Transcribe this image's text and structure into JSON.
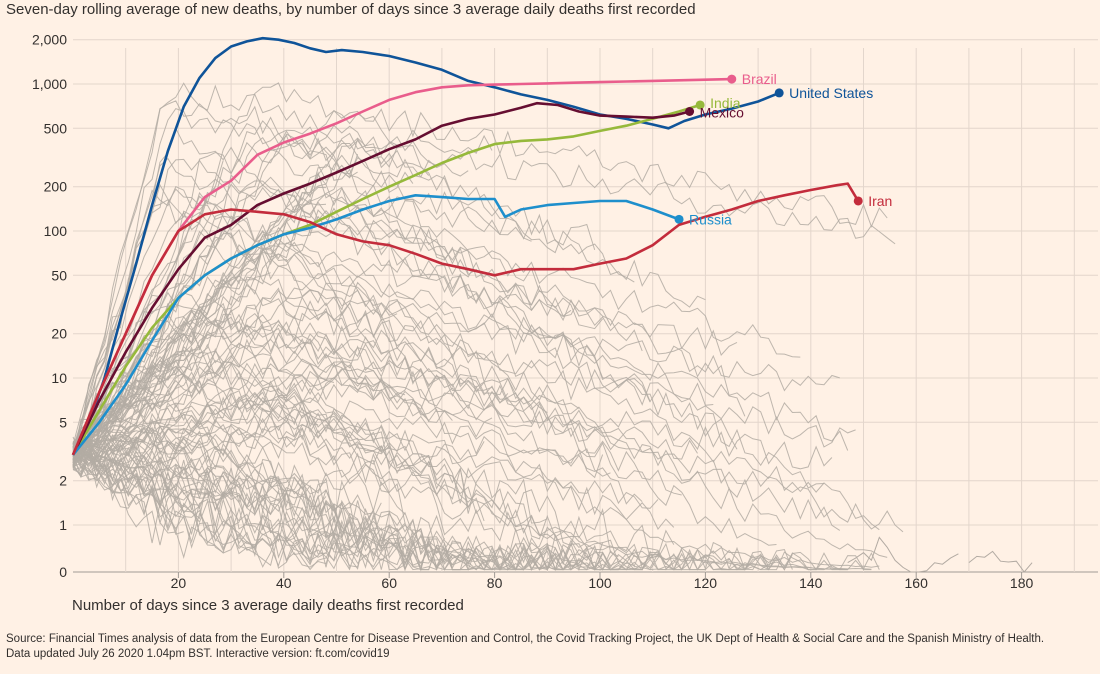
{
  "title": "Seven-day rolling average of new deaths, by number of days since 3 average daily deaths first recorded",
  "source": {
    "line1": "Source: Financial Times analysis of data from the European Centre for Disease Prevention and Control, the Covid Tracking Project, the UK Dept of Health & Social Care and the Spanish Ministry of Health.",
    "line2": "Data updated July 26 2020 1.04pm BST. Interactive version: ft.com/covid19"
  },
  "chart_data": {
    "type": "line",
    "title": "Seven-day rolling average of new deaths, by number of days since 3 average daily deaths first recorded",
    "xlabel": "Number of days since 3 average daily deaths first recorded",
    "ylabel": "",
    "y_scale": "log",
    "xlim": [
      0,
      190
    ],
    "ylim": [
      0,
      2500
    ],
    "x_ticks": [
      20,
      40,
      60,
      80,
      100,
      120,
      140,
      160,
      180
    ],
    "y_ticks": [
      {
        "value": 0,
        "label": "0"
      },
      {
        "value": 1,
        "label": "1"
      },
      {
        "value": 2,
        "label": "2"
      },
      {
        "value": 5,
        "label": "5"
      },
      {
        "value": 10,
        "label": "10"
      },
      {
        "value": 20,
        "label": "20"
      },
      {
        "value": 50,
        "label": "50"
      },
      {
        "value": 100,
        "label": "100"
      },
      {
        "value": 200,
        "label": "200"
      },
      {
        "value": 500,
        "label": "500"
      },
      {
        "value": 1000,
        "label": "1,000"
      },
      {
        "value": 2000,
        "label": "2,000"
      }
    ],
    "grid": true,
    "highlighted_series": [
      {
        "name": "United States",
        "color": "#0f5499",
        "x": [
          0,
          3,
          6,
          9,
          12,
          15,
          18,
          21,
          24,
          27,
          30,
          33,
          36,
          39,
          42,
          45,
          48,
          51,
          55,
          60,
          65,
          70,
          75,
          80,
          85,
          90,
          95,
          100,
          105,
          110,
          113,
          116,
          120,
          125,
          130,
          134
        ],
        "y": [
          3,
          5,
          10,
          25,
          60,
          150,
          350,
          700,
          1100,
          1500,
          1800,
          1950,
          2050,
          2000,
          1900,
          1750,
          1650,
          1700,
          1650,
          1550,
          1400,
          1250,
          1050,
          950,
          850,
          780,
          700,
          620,
          580,
          530,
          500,
          560,
          620,
          680,
          760,
          870
        ]
      },
      {
        "name": "Brazil",
        "color": "#e95d8c",
        "x": [
          0,
          5,
          10,
          15,
          20,
          25,
          30,
          35,
          40,
          45,
          50,
          55,
          60,
          65,
          70,
          75,
          80,
          85,
          90,
          95,
          100,
          105,
          110,
          115,
          120,
          125
        ],
        "y": [
          3,
          8,
          20,
          50,
          100,
          170,
          220,
          330,
          400,
          460,
          540,
          650,
          780,
          880,
          950,
          980,
          990,
          1000,
          1010,
          1020,
          1030,
          1040,
          1050,
          1060,
          1070,
          1080
        ]
      },
      {
        "name": "India",
        "color": "#96b93b",
        "x": [
          0,
          5,
          10,
          15,
          20,
          25,
          30,
          35,
          40,
          45,
          50,
          55,
          60,
          65,
          70,
          75,
          80,
          85,
          90,
          95,
          100,
          105,
          110,
          115,
          119
        ],
        "y": [
          3,
          6,
          12,
          22,
          35,
          50,
          65,
          80,
          95,
          110,
          135,
          165,
          200,
          240,
          290,
          340,
          390,
          410,
          420,
          440,
          480,
          520,
          580,
          650,
          720
        ]
      },
      {
        "name": "Mexico",
        "color": "#660e31",
        "x": [
          0,
          5,
          10,
          15,
          20,
          25,
          30,
          35,
          40,
          45,
          50,
          55,
          60,
          65,
          70,
          75,
          80,
          85,
          88,
          92,
          96,
          100,
          105,
          110,
          114,
          117
        ],
        "y": [
          3,
          7,
          15,
          30,
          55,
          90,
          110,
          150,
          180,
          210,
          250,
          300,
          360,
          420,
          520,
          580,
          620,
          690,
          740,
          720,
          650,
          610,
          600,
          590,
          610,
          650
        ]
      },
      {
        "name": "Russia",
        "color": "#1e8fcc",
        "x": [
          0,
          5,
          10,
          15,
          20,
          25,
          30,
          35,
          40,
          45,
          50,
          55,
          60,
          65,
          70,
          75,
          80,
          82,
          85,
          90,
          95,
          100,
          105,
          110,
          115
        ],
        "y": [
          3,
          5,
          9,
          18,
          35,
          50,
          65,
          80,
          95,
          105,
          120,
          140,
          160,
          175,
          170,
          165,
          165,
          125,
          140,
          150,
          155,
          160,
          160,
          140,
          120
        ]
      },
      {
        "name": "Iran",
        "color": "#c32c3c",
        "x": [
          0,
          5,
          10,
          15,
          20,
          25,
          30,
          35,
          40,
          45,
          50,
          55,
          60,
          65,
          70,
          75,
          80,
          85,
          90,
          95,
          100,
          105,
          110,
          115,
          120,
          125,
          130,
          135,
          140,
          145,
          147,
          149
        ],
        "y": [
          3,
          8,
          20,
          50,
          100,
          130,
          140,
          135,
          130,
          115,
          95,
          85,
          80,
          70,
          60,
          55,
          50,
          55,
          55,
          55,
          60,
          65,
          80,
          110,
          125,
          140,
          160,
          175,
          190,
          205,
          210,
          160
        ]
      }
    ],
    "background_series_color": "#b3aba3",
    "series_labels": [
      "United States",
      "Brazil",
      "India",
      "Mexico",
      "Russia",
      "Iran"
    ]
  }
}
